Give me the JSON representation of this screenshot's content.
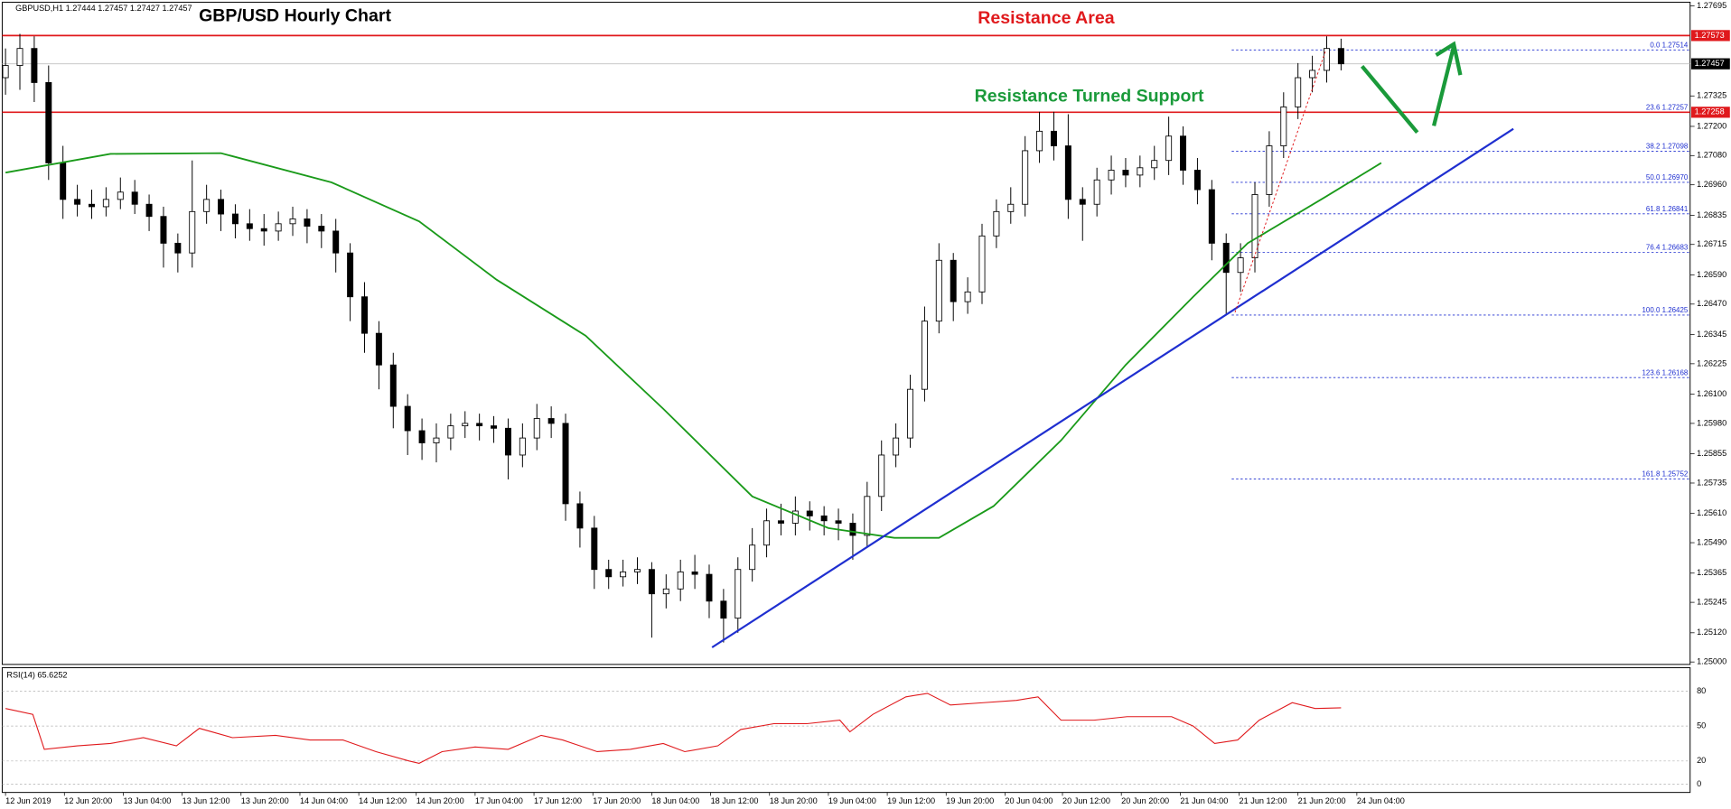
{
  "chart_data": {
    "type": "candlestick",
    "title": "GBP/USD Hourly Chart",
    "header": "GBPUSD,H1  1.27444 1.27457 1.27427 1.27457",
    "annotations": [
      "Resistance Area",
      "Resistance Turned Support"
    ],
    "ylim": [
      1.2499,
      1.2771
    ],
    "yticks": [
      1.27695,
      1.27325,
      {
        "value": 1.272,
        "label": "1.27200"
      },
      {
        "value": 1.2708,
        "label": "1.27080"
      },
      {
        "value": 1.2696,
        "label": "1.26960"
      },
      1.26835,
      1.26715,
      {
        "value": 1.2659,
        "label": "1.26590"
      },
      {
        "value": 1.2647,
        "label": "1.26470"
      },
      1.26345,
      1.26225,
      {
        "value": 1.261,
        "label": "1.26100"
      },
      {
        "value": 1.2598,
        "label": "1.25980"
      },
      1.25855,
      1.25735,
      {
        "value": 1.2561,
        "label": "1.25610"
      },
      {
        "value": 1.2549,
        "label": "1.25490"
      },
      1.25365,
      1.25245,
      {
        "value": 1.2512,
        "label": "1.25120"
      },
      {
        "value": 1.25,
        "label": "1.25000"
      }
    ],
    "xticks": [
      {
        "value": 0,
        "label": "12 Jun 2019"
      },
      {
        "value": 4.1,
        "label": "12 Jun 20:00"
      },
      {
        "value": 8.2,
        "label": "13 Jun 04:00"
      },
      {
        "value": 12.3,
        "label": "13 Jun 12:00"
      },
      {
        "value": 16.4,
        "label": "13 Jun 20:00"
      },
      {
        "value": 20.5,
        "label": "14 Jun 04:00"
      },
      {
        "value": 24.6,
        "label": "14 Jun 12:00"
      },
      {
        "value": 28.6,
        "label": "14 Jun 20:00"
      },
      {
        "value": 32.7,
        "label": "17 Jun 04:00"
      },
      {
        "value": 36.8,
        "label": "17 Jun 12:00"
      },
      {
        "value": 40.9,
        "label": "17 Jun 20:00"
      },
      {
        "value": 45.0,
        "label": "18 Jun 04:00"
      },
      {
        "value": 49.1,
        "label": "18 Jun 12:00"
      },
      {
        "value": 53.2,
        "label": "18 Jun 20:00"
      },
      {
        "value": 57.3,
        "label": "19 Jun 04:00"
      },
      {
        "value": 61.4,
        "label": "19 Jun 12:00"
      },
      {
        "value": 65.5,
        "label": "19 Jun 20:00"
      },
      {
        "value": 69.6,
        "label": "20 Jun 04:00"
      },
      {
        "value": 73.6,
        "label": "20 Jun 12:00"
      },
      {
        "value": 77.7,
        "label": "20 Jun 20:00"
      },
      {
        "value": 81.8,
        "label": "21 Jun 04:00"
      },
      {
        "value": 85.9,
        "label": "21 Jun 12:00"
      },
      {
        "value": 90.0,
        "label": "21 Jun 20:00"
      },
      {
        "value": 94.1,
        "label": "24 Jun 04:00"
      }
    ],
    "candles": {
      "up_color": "#ffffff",
      "down_color": "#000000",
      "open": [
        1.274,
        1.2745,
        1.2752,
        1.2738,
        1.2705,
        1.269,
        1.2688,
        1.2687,
        1.269,
        1.2693,
        1.2688,
        1.2683,
        1.2672,
        1.2668,
        1.2685,
        1.269,
        1.2684,
        1.268,
        1.2678,
        1.2677,
        1.268,
        1.2682,
        1.2679,
        1.2677,
        1.2668,
        1.265,
        1.2635,
        1.2622,
        1.2605,
        1.2595,
        1.259,
        1.2592,
        1.2597,
        1.2598,
        1.2597,
        1.2596,
        1.2585,
        1.2592,
        1.26,
        1.2598,
        1.2565,
        1.2555,
        1.2538,
        1.2535,
        1.2537,
        1.2538,
        1.2528,
        1.253,
        1.2537,
        1.2536,
        1.2525,
        1.2518,
        1.2538,
        1.2548,
        1.2558,
        1.2557,
        1.2562,
        1.256,
        1.2558,
        1.2557,
        1.2552,
        1.2568,
        1.2585,
        1.2592,
        1.2612,
        1.264,
        1.2665,
        1.2648,
        1.2652,
        1.2675,
        1.2685,
        1.2688,
        1.271,
        1.2718,
        1.2712,
        1.269,
        1.2688,
        1.2698,
        1.2702,
        1.27,
        1.2703,
        1.2706,
        1.2716,
        1.2702,
        1.2694,
        1.2672,
        1.266,
        1.2666,
        1.2692,
        1.2712,
        1.2728,
        1.274,
        1.2743,
        1.2752
      ],
      "high": [
        1.2752,
        1.2758,
        1.2757,
        1.2745,
        1.2712,
        1.2696,
        1.2694,
        1.2695,
        1.2699,
        1.2698,
        1.2692,
        1.2687,
        1.2676,
        1.2706,
        1.2696,
        1.2694,
        1.2688,
        1.2686,
        1.2684,
        1.2685,
        1.2687,
        1.2686,
        1.2684,
        1.2682,
        1.2672,
        1.2656,
        1.264,
        1.2627,
        1.261,
        1.26,
        1.2598,
        1.2602,
        1.2603,
        1.2602,
        1.2601,
        1.26,
        1.2598,
        1.2606,
        1.2605,
        1.2602,
        1.257,
        1.256,
        1.2542,
        1.2542,
        1.2543,
        1.2541,
        1.2536,
        1.2542,
        1.2544,
        1.254,
        1.253,
        1.2543,
        1.2555,
        1.2563,
        1.2565,
        1.2568,
        1.2566,
        1.2564,
        1.2563,
        1.2561,
        1.2574,
        1.2591,
        1.2598,
        1.2618,
        1.2646,
        1.2672,
        1.2668,
        1.2658,
        1.268,
        1.269,
        1.2695,
        1.2716,
        1.2726,
        1.2726,
        1.2725,
        1.2695,
        1.2703,
        1.2708,
        1.2707,
        1.2708,
        1.2712,
        1.2724,
        1.272,
        1.2707,
        1.2698,
        1.2676,
        1.2672,
        1.2697,
        1.2718,
        1.2734,
        1.2746,
        1.2749,
        1.2757,
        1.2756
      ],
      "low": [
        1.2733,
        1.2735,
        1.273,
        1.2698,
        1.2682,
        1.2683,
        1.2682,
        1.2683,
        1.2686,
        1.2684,
        1.2677,
        1.2662,
        1.266,
        1.2662,
        1.268,
        1.2677,
        1.2674,
        1.2673,
        1.2671,
        1.2673,
        1.2675,
        1.2672,
        1.267,
        1.266,
        1.264,
        1.2627,
        1.2612,
        1.2596,
        1.2585,
        1.2583,
        1.2582,
        1.2587,
        1.2592,
        1.2591,
        1.259,
        1.2575,
        1.258,
        1.2587,
        1.2592,
        1.2558,
        1.2547,
        1.253,
        1.253,
        1.2531,
        1.2532,
        1.251,
        1.2522,
        1.2525,
        1.253,
        1.2518,
        1.2508,
        1.2512,
        1.2533,
        1.2543,
        1.2552,
        1.2552,
        1.2554,
        1.2552,
        1.255,
        1.2542,
        1.2547,
        1.2562,
        1.258,
        1.2588,
        1.2607,
        1.2635,
        1.264,
        1.2643,
        1.2647,
        1.267,
        1.268,
        1.2683,
        1.2705,
        1.2706,
        1.2682,
        1.2673,
        1.2683,
        1.2692,
        1.2695,
        1.2695,
        1.2698,
        1.27,
        1.2696,
        1.2688,
        1.2665,
        1.2643,
        1.2652,
        1.266,
        1.2687,
        1.2707,
        1.2723,
        1.2734,
        1.2738,
        1.2743
      ],
      "close": [
        1.2745,
        1.2752,
        1.2738,
        1.2705,
        1.269,
        1.2688,
        1.2687,
        1.269,
        1.2693,
        1.2688,
        1.2683,
        1.2672,
        1.2668,
        1.2685,
        1.269,
        1.2684,
        1.268,
        1.2678,
        1.2677,
        1.268,
        1.2682,
        1.2679,
        1.2677,
        1.2668,
        1.265,
        1.2635,
        1.2622,
        1.2605,
        1.2595,
        1.259,
        1.2592,
        1.2597,
        1.2598,
        1.2597,
        1.2596,
        1.2585,
        1.2592,
        1.26,
        1.2598,
        1.2565,
        1.2555,
        1.2538,
        1.2535,
        1.2537,
        1.2538,
        1.2528,
        1.253,
        1.2537,
        1.2536,
        1.2525,
        1.2518,
        1.2538,
        1.2548,
        1.2558,
        1.2557,
        1.2562,
        1.256,
        1.2558,
        1.2557,
        1.2552,
        1.2568,
        1.2585,
        1.2592,
        1.2612,
        1.264,
        1.2665,
        1.2648,
        1.2652,
        1.2675,
        1.2685,
        1.2688,
        1.271,
        1.2718,
        1.2712,
        1.269,
        1.2688,
        1.2698,
        1.2702,
        1.27,
        1.2703,
        1.2706,
        1.2716,
        1.2702,
        1.2694,
        1.2672,
        1.266,
        1.2666,
        1.2692,
        1.2712,
        1.2728,
        1.274,
        1.2743,
        1.2752,
        1.27457
      ]
    },
    "moving_average": {
      "color": "#1a9a1a",
      "x": [
        0,
        7.3,
        15,
        22.7,
        28.8,
        34.2,
        40.4,
        45.8,
        52,
        57.3,
        61.9,
        65,
        68.8,
        73.5,
        78,
        82.7,
        86.5,
        91.9,
        95.8
      ],
      "values": [
        1.2701,
        1.27087,
        1.2709,
        1.2697,
        1.2681,
        1.2657,
        1.2634,
        1.2604,
        1.2568,
        1.2555,
        1.2551,
        1.2551,
        1.2564,
        1.2591,
        1.2622,
        1.265,
        1.2672,
        1.2691,
        1.2705
      ]
    },
    "trendline": {
      "color": "#1f2fd0",
      "x": [
        49.2,
        105
      ],
      "values": [
        1.2506,
        1.2719
      ]
    },
    "resistance_line": 1.27573,
    "support_line": 1.27258,
    "last_price": 1.27457,
    "line_color": "#e0191c",
    "fib_color": "#1f2fd0",
    "fib_levels": [
      {
        "ratio": "0.0",
        "price": 1.27514
      },
      {
        "ratio": "23.6",
        "price": 1.27257
      },
      {
        "ratio": "38.2",
        "price": 1.27098
      },
      {
        "ratio": "50.0",
        "price": {
          "value": 1.2697,
          "label": "1.26970"
        }
      },
      {
        "ratio": "61.8",
        "price": 1.26841
      },
      {
        "ratio": "76.4",
        "price": 1.26683
      },
      {
        "ratio": "100.0",
        "price": 1.26425
      },
      {
        "ratio": "123.6",
        "price": 1.26168
      },
      {
        "ratio": "161.8",
        "price": 1.25752
      }
    ],
    "rsi": {
      "label": "RSI(14) 65.6252",
      "color": "#e0191c",
      "ylim": [
        -7,
        100
      ],
      "yticks": [
        80,
        50,
        20,
        0
      ],
      "grid": true,
      "x": [
        0,
        1.9,
        2.7,
        5,
        7.3,
        9.6,
        11.9,
        13.5,
        15.8,
        18.8,
        21.2,
        23.5,
        25.8,
        28.1,
        28.8,
        30.4,
        32.7,
        35,
        37.3,
        38.8,
        41.2,
        43.5,
        45.8,
        47.3,
        49.6,
        51.2,
        53.5,
        55.8,
        58.1,
        58.8,
        60.4,
        62.7,
        64.2,
        65.8,
        68.1,
        70.4,
        71.9,
        73.5,
        75.8,
        78.1,
        81.2,
        82.7,
        84.2,
        85.8,
        87.3,
        89.6,
        91.2,
        93
      ],
      "values": [
        65,
        60,
        30,
        33,
        35,
        40,
        33,
        48,
        40,
        42,
        38,
        38,
        28,
        20,
        18,
        28,
        32,
        30,
        42,
        38,
        28,
        30,
        35,
        28,
        33,
        47,
        52,
        52,
        55,
        45,
        60,
        75,
        78,
        68,
        70,
        72,
        75,
        55,
        55,
        58,
        58,
        50,
        35,
        38,
        55,
        70,
        65,
        65.6
      ]
    }
  }
}
